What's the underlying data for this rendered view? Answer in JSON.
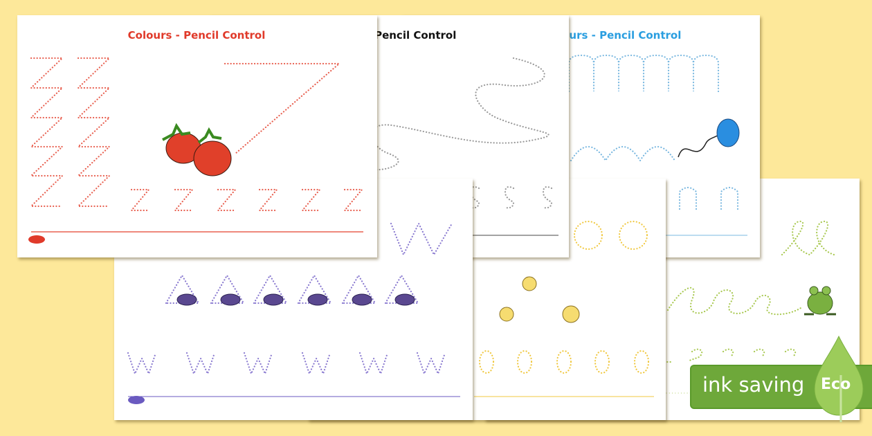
{
  "sheets": {
    "red": {
      "title": "Colours - Pencil Control",
      "color": "#e03a2a",
      "letter": "z"
    },
    "black": {
      "title": "Colours - Pencil Control",
      "color": "#111111",
      "letter": "s"
    },
    "blue": {
      "title": "Colours - Pencil Control",
      "color": "#2a9ee0",
      "letter": "n"
    },
    "purple": {
      "color": "#5a46b0",
      "letter": "w"
    },
    "yellow": {
      "color": "#f0c020",
      "letter": "o"
    },
    "green": {
      "color": "#9cc040",
      "letter": "e"
    }
  },
  "badge": {
    "text": "ink saving",
    "eco": "Eco",
    "color": "#6ea83a"
  },
  "icons": [
    "strawberry-icon",
    "balloon-icon",
    "grapes-icon",
    "sun-icon",
    "frog-icon",
    "leaf-icon",
    "publisher-logo"
  ]
}
